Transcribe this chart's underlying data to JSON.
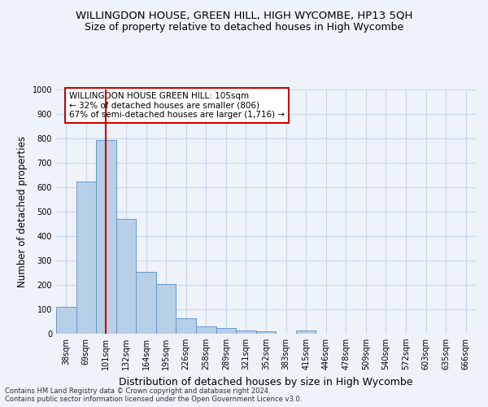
{
  "title": "WILLINGDON HOUSE, GREEN HILL, HIGH WYCOMBE, HP13 5QH",
  "subtitle": "Size of property relative to detached houses in High Wycombe",
  "xlabel": "Distribution of detached houses by size in High Wycombe",
  "ylabel": "Number of detached properties",
  "categories": [
    "38sqm",
    "69sqm",
    "101sqm",
    "132sqm",
    "164sqm",
    "195sqm",
    "226sqm",
    "258sqm",
    "289sqm",
    "321sqm",
    "352sqm",
    "383sqm",
    "415sqm",
    "446sqm",
    "478sqm",
    "509sqm",
    "540sqm",
    "572sqm",
    "603sqm",
    "635sqm",
    "666sqm"
  ],
  "values": [
    110,
    625,
    795,
    470,
    253,
    203,
    63,
    30,
    22,
    15,
    10,
    0,
    13,
    0,
    0,
    0,
    0,
    0,
    0,
    0,
    0
  ],
  "bar_color": "#b8cfe8",
  "bar_edge_color": "#6699cc",
  "grid_color": "#c8d8ee",
  "background_color": "#eef2f9",
  "vline_x": 2,
  "vline_color": "#cc0000",
  "annotation_text": "WILLINGDON HOUSE GREEN HILL: 105sqm\n← 32% of detached houses are smaller (806)\n67% of semi-detached houses are larger (1,716) →",
  "annotation_box_color": "#ffffff",
  "annotation_box_edge": "#cc0000",
  "ylim": [
    0,
    1000
  ],
  "yticks": [
    0,
    100,
    200,
    300,
    400,
    500,
    600,
    700,
    800,
    900,
    1000
  ],
  "footer": "Contains HM Land Registry data © Crown copyright and database right 2024.\nContains public sector information licensed under the Open Government Licence v3.0.",
  "title_fontsize": 9.5,
  "subtitle_fontsize": 9,
  "tick_fontsize": 7,
  "ylabel_fontsize": 8.5,
  "xlabel_fontsize": 9
}
